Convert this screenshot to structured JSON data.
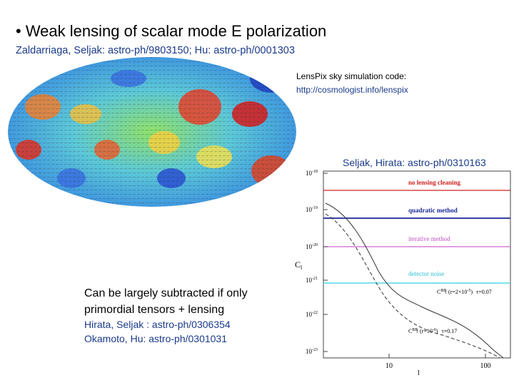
{
  "slide": {
    "title": "• Weak lensing of scalar mode E polarization",
    "subtitle": "Zaldarriaga, Seljak: astro-ph/9803150; Hu: astro-ph/0001303",
    "lenspix": {
      "line1": "LensPix sky simulation code:",
      "line2": "http://cosmologist.info/lenspix"
    },
    "plot_credit": "Seljak, Hirata: astro-ph/0310163",
    "note": {
      "line1": "Can be largely subtracted if only",
      "line2": "primordial tensors + lensing",
      "ref1": "Hirata, Seljak : astro-ph/0306354",
      "ref2": "Okamoto, Hu: astro-ph/0301031"
    },
    "plot": {
      "ylabel": "C",
      "ylabel_sub": "l",
      "xlabel": "l",
      "yticks": [
        {
          "base": "10",
          "exp": "-18"
        },
        {
          "base": "10",
          "exp": "-19"
        },
        {
          "base": "10",
          "exp": "-20"
        },
        {
          "base": "10",
          "exp": "-21"
        },
        {
          "base": "10",
          "exp": "-22"
        },
        {
          "base": "10",
          "exp": "-23"
        }
      ],
      "xticks": [
        "10",
        "100"
      ],
      "legend": [
        "no lensing cleaning",
        "quadratic method",
        "iterative method",
        "detector noise"
      ],
      "curve1": {
        "c": "C",
        "sup": "BB",
        "sub": "l",
        "text": "(r=2×10",
        "exp": "-5",
        ")": ")",
        "tau": "τ=0.07"
      },
      "curve2": {
        "c": "C",
        "sup": "BB",
        "sub": "l",
        "text": "(r=10",
        "exp": "-6",
        ")": ")",
        "tau": "τ=0.17"
      }
    }
  }
}
